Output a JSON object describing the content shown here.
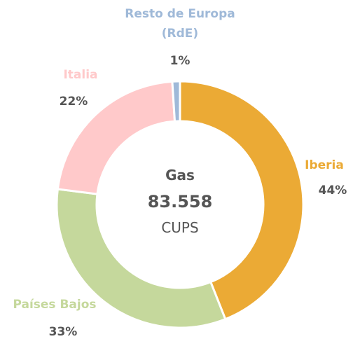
{
  "chart_data": {
    "type": "donut",
    "categories": [
      "Iberia",
      "Países Bajos",
      "Italia",
      "Resto de Europa (RdE)"
    ],
    "values": [
      44,
      33,
      22,
      1
    ],
    "value_labels": [
      "44%",
      "33%",
      "22%",
      "1%"
    ],
    "colors": [
      "#ebaa35",
      "#c5d89c",
      "#ffc9ca",
      "#9fb9d8"
    ],
    "center": {
      "title": "Gas",
      "total": {
        "value": 83558,
        "label": "83.558"
      },
      "unit": "CUPS"
    }
  }
}
